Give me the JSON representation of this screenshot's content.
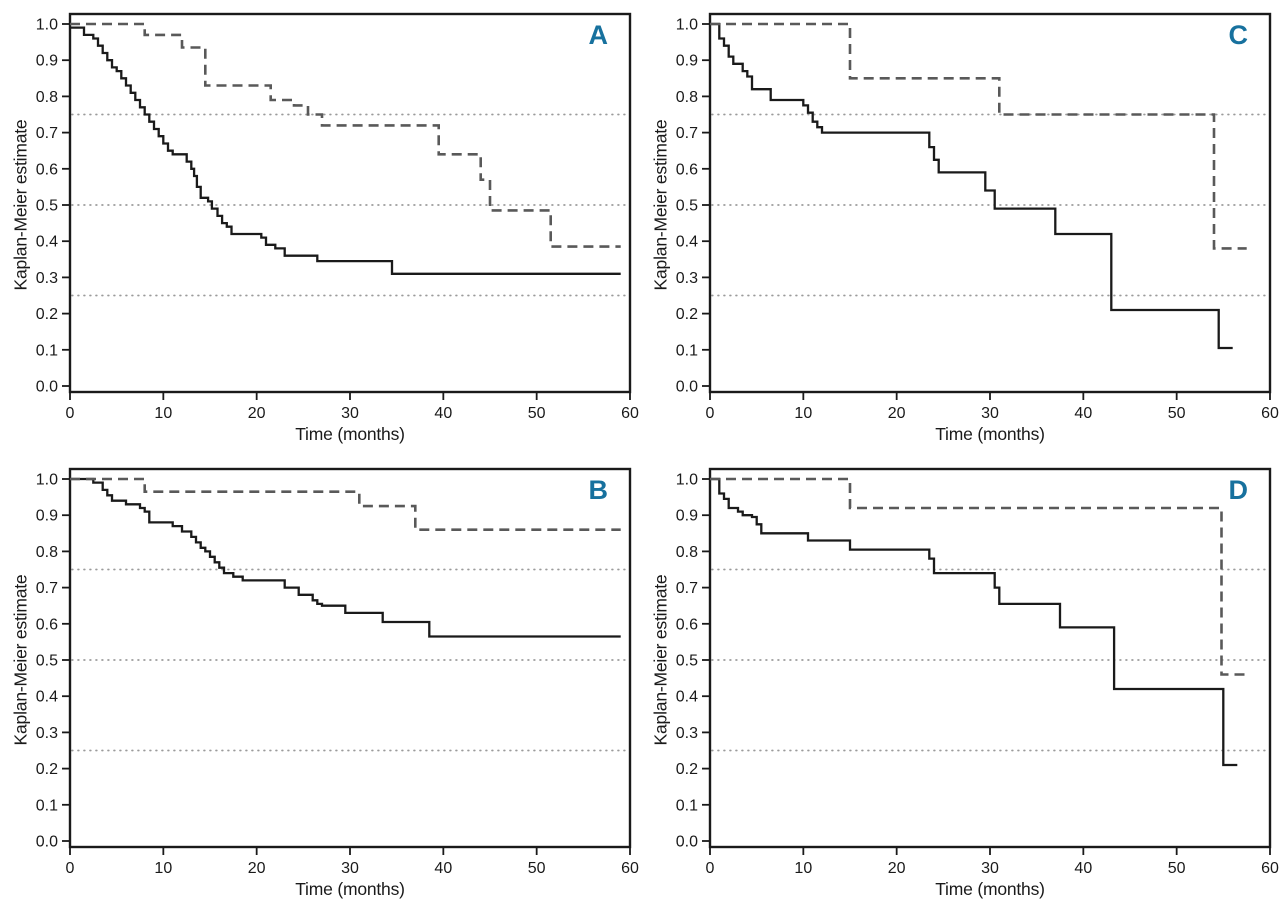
{
  "figure": {
    "background": "#ffffff",
    "panel_label_color": "#17719e",
    "solid_line_color": "#1a1a1a",
    "dashed_line_color": "#595959",
    "gridline_color": "#9b9b9b",
    "spine_color": "#1a1a1a"
  },
  "chart_data": [
    {
      "type": "line",
      "subtype": "kaplan-meier-step",
      "panel_label": "A",
      "title": "",
      "xlabel": "Time (months)",
      "ylabel": "Kaplan-Meier estimate",
      "xlim": [
        0,
        60
      ],
      "ylim": [
        0.0,
        1.0
      ],
      "xticks": [
        0,
        10,
        20,
        30,
        40,
        50,
        60
      ],
      "ytick_labels": [
        "0.0",
        "0.1",
        "0.2",
        "0.3",
        "0.4",
        "0.5",
        "0.6",
        "0.7",
        "0.8",
        "0.9",
        "1.0"
      ],
      "gridlines_y": [
        0.25,
        0.5,
        0.75
      ],
      "grid_style": "dotted-horizontal",
      "legend": "none",
      "series": [
        {
          "name": "group-solid",
          "line_style": "solid",
          "steps": [
            [
              0,
              0.99
            ],
            [
              1.5,
              0.97
            ],
            [
              2.5,
              0.96
            ],
            [
              3,
              0.94
            ],
            [
              3.5,
              0.92
            ],
            [
              4,
              0.9
            ],
            [
              4.5,
              0.88
            ],
            [
              5,
              0.87
            ],
            [
              5.5,
              0.85
            ],
            [
              6,
              0.83
            ],
            [
              6.5,
              0.81
            ],
            [
              7,
              0.79
            ],
            [
              7.5,
              0.77
            ],
            [
              8,
              0.75
            ],
            [
              8.5,
              0.73
            ],
            [
              9,
              0.71
            ],
            [
              9.5,
              0.69
            ],
            [
              10,
              0.67
            ],
            [
              10.5,
              0.65
            ],
            [
              11,
              0.64
            ],
            [
              12.5,
              0.62
            ],
            [
              13,
              0.6
            ],
            [
              13.3,
              0.58
            ],
            [
              13.6,
              0.55
            ],
            [
              14,
              0.52
            ],
            [
              14.8,
              0.51
            ],
            [
              15.2,
              0.49
            ],
            [
              15.8,
              0.47
            ],
            [
              16.3,
              0.45
            ],
            [
              16.8,
              0.44
            ],
            [
              17.3,
              0.42
            ],
            [
              20.5,
              0.41
            ],
            [
              21,
              0.39
            ],
            [
              22,
              0.38
            ],
            [
              23,
              0.36
            ],
            [
              26.5,
              0.345
            ],
            [
              34.5,
              0.31
            ],
            [
              59,
              0.31
            ]
          ]
        },
        {
          "name": "group-dashed",
          "line_style": "dashed",
          "steps": [
            [
              0,
              1.0
            ],
            [
              8,
              0.97
            ],
            [
              12,
              0.935
            ],
            [
              14.5,
              0.83
            ],
            [
              21.5,
              0.79
            ],
            [
              24,
              0.775
            ],
            [
              25.5,
              0.75
            ],
            [
              27,
              0.72
            ],
            [
              39.5,
              0.64
            ],
            [
              44,
              0.57
            ],
            [
              45,
              0.485
            ],
            [
              51.5,
              0.385
            ],
            [
              59,
              0.385
            ]
          ]
        }
      ]
    },
    {
      "type": "line",
      "subtype": "kaplan-meier-step",
      "panel_label": "C",
      "title": "",
      "xlabel": "Time (months)",
      "ylabel": "Kaplan-Meier estimate",
      "xlim": [
        0,
        60
      ],
      "ylim": [
        0.0,
        1.0
      ],
      "xticks": [
        0,
        10,
        20,
        30,
        40,
        50,
        60
      ],
      "ytick_labels": [
        "0.0",
        "0.1",
        "0.2",
        "0.3",
        "0.4",
        "0.5",
        "0.6",
        "0.7",
        "0.8",
        "0.9",
        "1.0"
      ],
      "gridlines_y": [
        0.25,
        0.5,
        0.75
      ],
      "grid_style": "dotted-horizontal",
      "legend": "none",
      "series": [
        {
          "name": "group-solid",
          "line_style": "solid",
          "steps": [
            [
              0,
              1.0
            ],
            [
              1,
              0.96
            ],
            [
              1.5,
              0.94
            ],
            [
              2,
              0.91
            ],
            [
              2.5,
              0.89
            ],
            [
              3.5,
              0.87
            ],
            [
              4,
              0.855
            ],
            [
              4.5,
              0.82
            ],
            [
              6.5,
              0.79
            ],
            [
              10,
              0.775
            ],
            [
              10.5,
              0.755
            ],
            [
              11,
              0.73
            ],
            [
              11.5,
              0.715
            ],
            [
              12,
              0.7
            ],
            [
              23.5,
              0.66
            ],
            [
              24,
              0.625
            ],
            [
              24.5,
              0.59
            ],
            [
              29.5,
              0.54
            ],
            [
              30.5,
              0.49
            ],
            [
              37,
              0.42
            ],
            [
              43,
              0.21
            ],
            [
              54.5,
              0.105
            ],
            [
              56,
              0.105
            ]
          ]
        },
        {
          "name": "group-dashed",
          "line_style": "dashed",
          "steps": [
            [
              0,
              1.0
            ],
            [
              15,
              0.85
            ],
            [
              31,
              0.75
            ],
            [
              54,
              0.38
            ],
            [
              57.5,
              0.38
            ]
          ]
        }
      ]
    },
    {
      "type": "line",
      "subtype": "kaplan-meier-step",
      "panel_label": "B",
      "title": "",
      "xlabel": "Time (months)",
      "ylabel": "Kaplan-Meier estimate",
      "xlim": [
        0,
        60
      ],
      "ylim": [
        0.0,
        1.0
      ],
      "xticks": [
        0,
        10,
        20,
        30,
        40,
        50,
        60
      ],
      "ytick_labels": [
        "0.0",
        "0.1",
        "0.2",
        "0.3",
        "0.4",
        "0.5",
        "0.6",
        "0.7",
        "0.8",
        "0.9",
        "1.0"
      ],
      "gridlines_y": [
        0.25,
        0.5,
        0.75
      ],
      "grid_style": "dotted-horizontal",
      "legend": "none",
      "series": [
        {
          "name": "group-solid",
          "line_style": "solid",
          "steps": [
            [
              0,
              1.0
            ],
            [
              2.5,
              0.99
            ],
            [
              3.5,
              0.97
            ],
            [
              4,
              0.955
            ],
            [
              4.5,
              0.94
            ],
            [
              6,
              0.93
            ],
            [
              7.5,
              0.92
            ],
            [
              8,
              0.91
            ],
            [
              8.5,
              0.88
            ],
            [
              11,
              0.87
            ],
            [
              12,
              0.855
            ],
            [
              13,
              0.84
            ],
            [
              13.5,
              0.825
            ],
            [
              14,
              0.81
            ],
            [
              14.5,
              0.8
            ],
            [
              15,
              0.785
            ],
            [
              15.5,
              0.77
            ],
            [
              16,
              0.755
            ],
            [
              16.5,
              0.74
            ],
            [
              17.5,
              0.73
            ],
            [
              18.5,
              0.72
            ],
            [
              23,
              0.7
            ],
            [
              24.5,
              0.68
            ],
            [
              26,
              0.665
            ],
            [
              26.5,
              0.655
            ],
            [
              27,
              0.65
            ],
            [
              29.5,
              0.63
            ],
            [
              33.5,
              0.605
            ],
            [
              38.5,
              0.565
            ],
            [
              59,
              0.565
            ]
          ]
        },
        {
          "name": "group-dashed",
          "line_style": "dashed",
          "steps": [
            [
              0,
              1.0
            ],
            [
              8,
              0.965
            ],
            [
              31,
              0.925
            ],
            [
              37,
              0.86
            ],
            [
              59,
              0.86
            ]
          ]
        }
      ]
    },
    {
      "type": "line",
      "subtype": "kaplan-meier-step",
      "panel_label": "D",
      "title": "",
      "xlabel": "Time (months)",
      "ylabel": "Kaplan-Meier estimate",
      "xlim": [
        0,
        60
      ],
      "ylim": [
        0.0,
        1.0
      ],
      "xticks": [
        0,
        10,
        20,
        30,
        40,
        50,
        60
      ],
      "ytick_labels": [
        "0.0",
        "0.1",
        "0.2",
        "0.3",
        "0.4",
        "0.5",
        "0.6",
        "0.7",
        "0.8",
        "0.9",
        "1.0"
      ],
      "gridlines_y": [
        0.25,
        0.5,
        0.75
      ],
      "grid_style": "dotted-horizontal",
      "legend": "none",
      "series": [
        {
          "name": "group-solid",
          "line_style": "solid",
          "steps": [
            [
              0,
              1.0
            ],
            [
              1,
              0.96
            ],
            [
              1.5,
              0.945
            ],
            [
              2,
              0.92
            ],
            [
              3,
              0.91
            ],
            [
              3.5,
              0.9
            ],
            [
              4.5,
              0.895
            ],
            [
              5,
              0.875
            ],
            [
              5.5,
              0.85
            ],
            [
              10.5,
              0.83
            ],
            [
              15,
              0.805
            ],
            [
              23.5,
              0.78
            ],
            [
              24,
              0.74
            ],
            [
              30.5,
              0.7
            ],
            [
              31,
              0.655
            ],
            [
              37.5,
              0.59
            ],
            [
              43.3,
              0.42
            ],
            [
              55,
              0.21
            ],
            [
              56.5,
              0.21
            ]
          ]
        },
        {
          "name": "group-dashed",
          "line_style": "dashed",
          "steps": [
            [
              0,
              1.0
            ],
            [
              15,
              0.92
            ],
            [
              54.8,
              0.46
            ],
            [
              57.5,
              0.46
            ]
          ]
        }
      ]
    }
  ]
}
